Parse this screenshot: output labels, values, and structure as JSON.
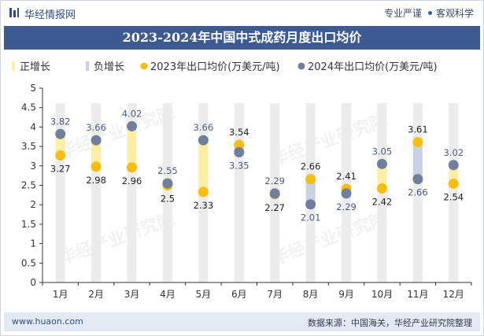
{
  "header": {
    "brand": "华经情报网",
    "tag1": "专业严谨",
    "tag2": "客观科学",
    "title": "2023-2024年中国中式成药月度出口均价"
  },
  "footer": {
    "url": "www.huaon.com",
    "source": "数据来源：中国海关，华经产业研究院整理"
  },
  "watermark": "华经产业研究院",
  "colors": {
    "bar": "#ececec",
    "increase_band": "#fdeea3",
    "decrease_band": "#c9d1e2",
    "series_2023": "#f7bd10",
    "series_2024": "#6f7f9c",
    "header_bg": "#3d5a93"
  },
  "chart_data": {
    "type": "line",
    "categories": [
      "1月",
      "2月",
      "3月",
      "4月",
      "5月",
      "6月",
      "7月",
      "8月",
      "9月",
      "10月",
      "11月",
      "12月"
    ],
    "legend": {
      "position": "top-left",
      "items": [
        "正增长",
        "负增长",
        "2023年出口均价(万美元/吨)",
        "2024年出口均价(万美元/吨)"
      ]
    },
    "series": [
      {
        "name": "2023年出口均价(万美元/吨)",
        "values": [
          3.27,
          2.98,
          2.96,
          2.5,
          2.33,
          3.54,
          2.27,
          2.66,
          2.41,
          2.42,
          3.61,
          2.54
        ]
      },
      {
        "name": "2024年出口均价(万美元/吨)",
        "values": [
          3.82,
          3.66,
          4.02,
          2.55,
          3.66,
          3.35,
          2.29,
          2.01,
          2.29,
          3.05,
          2.66,
          3.02
        ]
      }
    ],
    "ylim": [
      0,
      5
    ],
    "yticks": [
      "0",
      "0.5",
      "1",
      "1.5",
      "2",
      "2.5",
      "3",
      "3.5",
      "4",
      "4.5",
      "5"
    ],
    "grid": false
  }
}
